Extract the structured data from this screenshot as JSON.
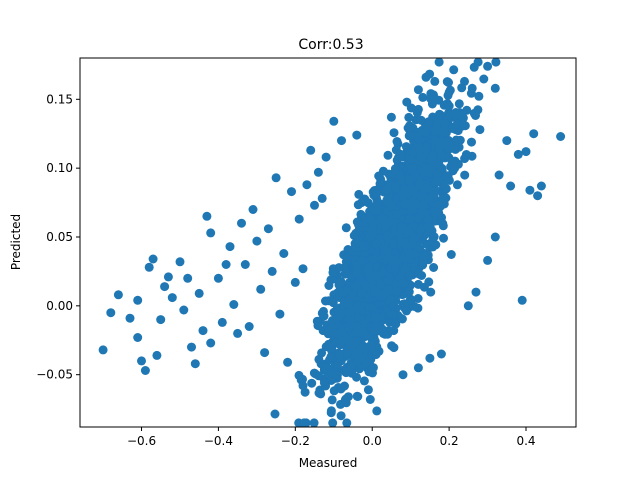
{
  "chart_data": {
    "type": "scatter",
    "title": "Corr:0.53",
    "xlabel": "Measured",
    "ylabel": "Predicted",
    "xlim": [
      -0.76,
      0.53
    ],
    "ylim": [
      -0.088,
      0.18
    ],
    "xticks": [
      -0.6,
      -0.4,
      -0.2,
      0.0,
      0.2,
      0.4
    ],
    "xtick_labels": [
      "−0.6",
      "−0.4",
      "−0.2",
      "0.0",
      "0.2",
      "0.4"
    ],
    "yticks": [
      -0.05,
      0.0,
      0.05,
      0.1,
      0.15
    ],
    "ytick_labels": [
      "−0.05",
      "0.00",
      "0.05",
      "0.10",
      "0.15"
    ],
    "grid": false,
    "marker_color": "#1f77b4",
    "outlier_points": [
      [
        -0.7,
        -0.032
      ],
      [
        -0.68,
        -0.005
      ],
      [
        -0.66,
        0.008
      ],
      [
        -0.63,
        -0.009
      ],
      [
        -0.61,
        0.004
      ],
      [
        -0.61,
        -0.023
      ],
      [
        -0.6,
        -0.04
      ],
      [
        -0.59,
        -0.047
      ],
      [
        -0.58,
        0.028
      ],
      [
        -0.57,
        0.034
      ],
      [
        -0.56,
        -0.036
      ],
      [
        -0.55,
        -0.01
      ],
      [
        -0.54,
        0.014
      ],
      [
        -0.53,
        0.021
      ],
      [
        -0.52,
        0.006
      ],
      [
        -0.5,
        0.032
      ],
      [
        -0.49,
        -0.003
      ],
      [
        -0.48,
        0.02
      ],
      [
        -0.47,
        -0.03
      ],
      [
        -0.46,
        -0.042
      ],
      [
        -0.45,
        0.009
      ],
      [
        -0.44,
        -0.018
      ],
      [
        -0.43,
        0.065
      ],
      [
        -0.42,
        0.053
      ],
      [
        -0.42,
        -0.027
      ],
      [
        -0.4,
        0.02
      ],
      [
        -0.39,
        -0.012
      ],
      [
        -0.38,
        0.03
      ],
      [
        -0.37,
        0.043
      ],
      [
        -0.36,
        0.001
      ],
      [
        -0.35,
        -0.02
      ],
      [
        -0.34,
        0.06
      ],
      [
        -0.33,
        0.03
      ],
      [
        -0.32,
        -0.015
      ],
      [
        -0.31,
        0.07
      ],
      [
        -0.3,
        0.047
      ],
      [
        -0.29,
        0.012
      ],
      [
        -0.28,
        -0.034
      ],
      [
        -0.27,
        0.056
      ],
      [
        -0.26,
        0.025
      ],
      [
        -0.25,
        0.093
      ],
      [
        -0.24,
        -0.006
      ],
      [
        -0.23,
        0.038
      ],
      [
        -0.22,
        -0.041
      ],
      [
        -0.21,
        0.083
      ],
      [
        -0.2,
        0.017
      ],
      [
        -0.19,
        0.063
      ],
      [
        -0.18,
        0.027
      ],
      [
        -0.17,
        0.088
      ],
      [
        -0.16,
        0.113
      ],
      [
        -0.15,
        0.073
      ],
      [
        -0.14,
        0.097
      ],
      [
        -0.13,
        0.078
      ],
      [
        -0.12,
        0.108
      ],
      [
        -0.1,
        0.134
      ],
      [
        -0.08,
        0.12
      ],
      [
        -0.04,
        0.124
      ],
      [
        -0.01,
        -0.061
      ],
      [
        -0.005,
        -0.068
      ],
      [
        0.05,
        0.137
      ],
      [
        0.09,
        0.148
      ],
      [
        0.12,
        0.157
      ],
      [
        0.14,
        0.166
      ],
      [
        0.18,
        -0.035
      ],
      [
        0.2,
        0.155
      ],
      [
        0.24,
        0.163
      ],
      [
        0.26,
        0.158
      ],
      [
        0.28,
        0.128
      ],
      [
        0.3,
        0.174
      ],
      [
        0.32,
        0.158
      ],
      [
        0.33,
        0.095
      ],
      [
        0.35,
        0.12
      ],
      [
        0.36,
        0.087
      ],
      [
        0.38,
        0.11
      ],
      [
        0.39,
        0.004
      ],
      [
        0.4,
        0.112
      ],
      [
        0.41,
        0.084
      ],
      [
        0.42,
        0.125
      ],
      [
        0.43,
        0.08
      ],
      [
        0.44,
        0.087
      ],
      [
        0.49,
        0.123
      ],
      [
        0.3,
        0.033
      ],
      [
        0.27,
        0.01
      ],
      [
        0.32,
        0.05
      ],
      [
        0.25,
        0.0
      ],
      [
        -0.18,
        -0.058
      ],
      [
        -0.12,
        -0.045
      ],
      [
        0.08,
        -0.05
      ],
      [
        0.12,
        -0.045
      ],
      [
        0.15,
        -0.038
      ]
    ],
    "dense_core": {
      "slope": 0.45,
      "center_x": 0.05,
      "center_y": 0.045,
      "sd_x": 0.075,
      "sd_resid": 0.027,
      "count": 2600
    }
  }
}
